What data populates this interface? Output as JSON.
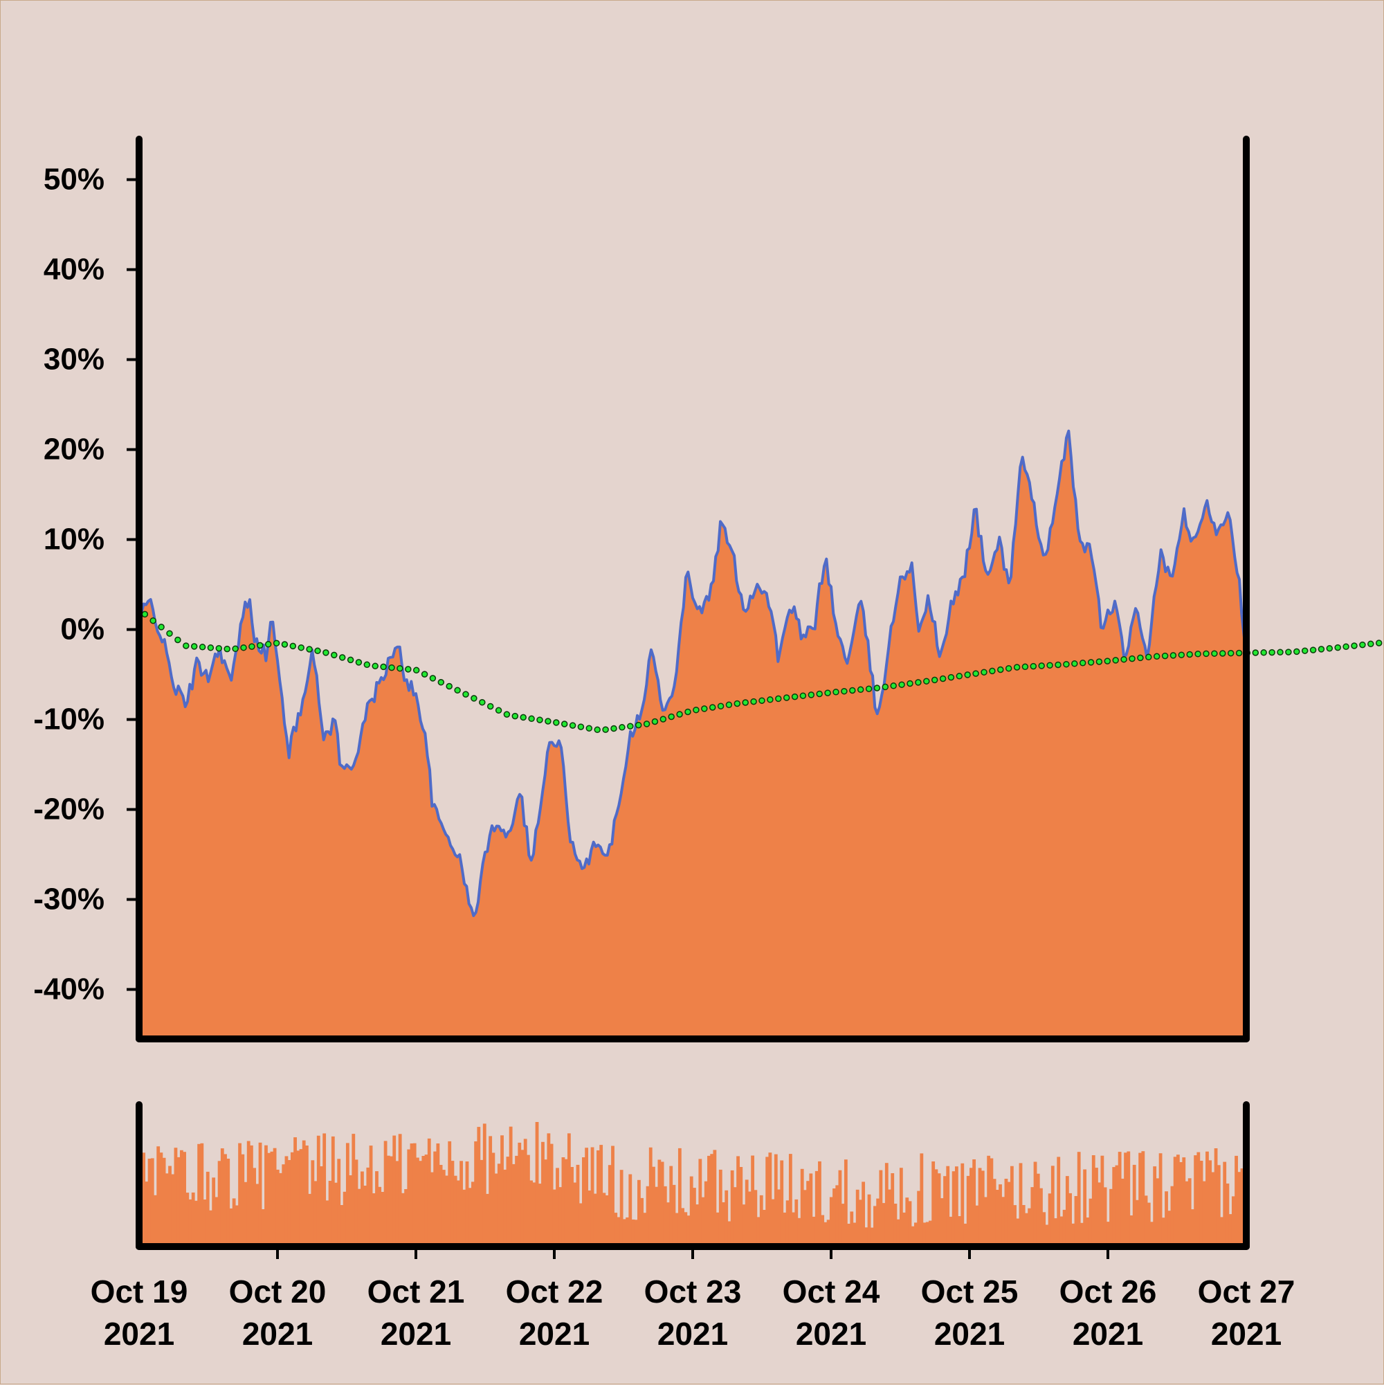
{
  "colors": {
    "background": "#e4d4ce",
    "area_fill": "#ee8148",
    "price_line": "#4f6bc8",
    "ma_marker_fill": "#22e832",
    "ma_marker_stroke": "#0a3a0a",
    "volume_fill": "#ee8148",
    "axis": "#000000"
  },
  "chart_data": [
    {
      "type": "area",
      "name": "price-panel",
      "y_format": "percent",
      "ylim": [
        -0.455,
        0.545
      ],
      "y_ticks": [
        0.5,
        0.4,
        0.3,
        0.2,
        0.1,
        0.0,
        -0.1,
        -0.2,
        -0.3,
        -0.4
      ],
      "y_tick_labels": [
        "50%",
        "40%",
        "30%",
        "20%",
        "10%",
        "0%",
        "-10%",
        "-20%",
        "-30%",
        "-40%"
      ],
      "xlim": [
        "2021-10-19",
        "2021-10-27"
      ],
      "grid": false,
      "series": [
        {
          "role": "price",
          "style": "filled area with line",
          "anchors": [
            [
              "2021-10-19T00:00",
              0.015
            ],
            [
              "2021-10-19T02:00",
              0.03
            ],
            [
              "2021-10-19T04:00",
              -0.01
            ],
            [
              "2021-10-19T06:00",
              -0.06
            ],
            [
              "2021-10-19T08:00",
              -0.085
            ],
            [
              "2021-10-19T10:00",
              -0.04
            ],
            [
              "2021-10-19T12:00",
              -0.05
            ],
            [
              "2021-10-19T14:00",
              -0.02
            ],
            [
              "2021-10-19T16:00",
              -0.06
            ],
            [
              "2021-10-19T18:00",
              0.015
            ],
            [
              "2021-10-19T19:00",
              0.035
            ],
            [
              "2021-10-19T20:00",
              -0.005
            ],
            [
              "2021-10-19T22:00",
              -0.03
            ],
            [
              "2021-10-19T23:00",
              0.015
            ],
            [
              "2021-10-20T00:00",
              -0.04
            ],
            [
              "2021-10-20T02:00",
              -0.135
            ],
            [
              "2021-10-20T04:00",
              -0.09
            ],
            [
              "2021-10-20T06:00",
              -0.02
            ],
            [
              "2021-10-20T08:00",
              -0.12
            ],
            [
              "2021-10-20T10:00",
              -0.1
            ],
            [
              "2021-10-20T11:00",
              -0.155
            ],
            [
              "2021-10-20T13:00",
              -0.155
            ],
            [
              "2021-10-20T15:00",
              -0.1
            ],
            [
              "2021-10-20T17:00",
              -0.07
            ],
            [
              "2021-10-20T19:00",
              -0.04
            ],
            [
              "2021-10-20T21:00",
              -0.02
            ],
            [
              "2021-10-20T22:00",
              -0.05
            ],
            [
              "2021-10-21T00:00",
              -0.075
            ],
            [
              "2021-10-21T01:30",
              -0.11
            ],
            [
              "2021-10-21T03:00",
              -0.2
            ],
            [
              "2021-10-21T05:00",
              -0.225
            ],
            [
              "2021-10-21T07:00",
              -0.245
            ],
            [
              "2021-10-21T08:30",
              -0.28
            ],
            [
              "2021-10-21T10:00",
              -0.325
            ],
            [
              "2021-10-21T12:00",
              -0.25
            ],
            [
              "2021-10-21T14:00",
              -0.21
            ],
            [
              "2021-10-21T16:00",
              -0.23
            ],
            [
              "2021-10-21T18:00",
              -0.175
            ],
            [
              "2021-10-21T20:00",
              -0.26
            ],
            [
              "2021-10-21T22:00",
              -0.18
            ],
            [
              "2021-10-21T23:00",
              -0.13
            ],
            [
              "2021-10-22T01:00",
              -0.125
            ],
            [
              "2021-10-22T03:00",
              -0.24
            ],
            [
              "2021-10-22T05:00",
              -0.275
            ],
            [
              "2021-10-22T07:00",
              -0.23
            ],
            [
              "2021-10-22T09:00",
              -0.26
            ],
            [
              "2021-10-22T11:00",
              -0.2
            ],
            [
              "2021-10-22T13:00",
              -0.12
            ],
            [
              "2021-10-22T15:00",
              -0.09
            ],
            [
              "2021-10-22T17:00",
              -0.02
            ],
            [
              "2021-10-22T19:00",
              -0.1
            ],
            [
              "2021-10-22T21:00",
              -0.05
            ],
            [
              "2021-10-22T23:00",
              0.065
            ],
            [
              "2021-10-23T01:00",
              0.02
            ],
            [
              "2021-10-23T03:00",
              0.035
            ],
            [
              "2021-10-23T05:00",
              0.12
            ],
            [
              "2021-10-23T07:00",
              0.08
            ],
            [
              "2021-10-23T09:00",
              0.02
            ],
            [
              "2021-10-23T11:00",
              0.05
            ],
            [
              "2021-10-23T13:00",
              0.04
            ],
            [
              "2021-10-23T15:00",
              -0.035
            ],
            [
              "2021-10-23T17:00",
              0.03
            ],
            [
              "2021-10-23T19:00",
              -0.01
            ],
            [
              "2021-10-23T21:00",
              0.0
            ],
            [
              "2021-10-23T23:00",
              0.085
            ],
            [
              "2021-10-24T01:00",
              -0.005
            ],
            [
              "2021-10-24T03:00",
              -0.035
            ],
            [
              "2021-10-24T05:00",
              0.03
            ],
            [
              "2021-10-24T06:00",
              0.0
            ],
            [
              "2021-10-24T08:00",
              -0.1
            ],
            [
              "2021-10-24T10:00",
              -0.02
            ],
            [
              "2021-10-24T12:00",
              0.06
            ],
            [
              "2021-10-24T14:00",
              0.07
            ],
            [
              "2021-10-24T15:00",
              0.0
            ],
            [
              "2021-10-24T17:00",
              0.035
            ],
            [
              "2021-10-24T19:00",
              -0.035
            ],
            [
              "2021-10-24T21:00",
              0.03
            ],
            [
              "2021-10-24T23:00",
              0.06
            ],
            [
              "2021-10-25T01:00",
              0.135
            ],
            [
              "2021-10-25T03:00",
              0.055
            ],
            [
              "2021-10-25T05:00",
              0.1
            ],
            [
              "2021-10-25T07:00",
              0.05
            ],
            [
              "2021-10-25T09:00",
              0.19
            ],
            [
              "2021-10-25T11:00",
              0.14
            ],
            [
              "2021-10-25T13:00",
              0.08
            ],
            [
              "2021-10-25T15:00",
              0.135
            ],
            [
              "2021-10-25T17:00",
              0.225
            ],
            [
              "2021-10-25T19:00",
              0.1
            ],
            [
              "2021-10-25T21:00",
              0.09
            ],
            [
              "2021-10-25T23:00",
              0.0
            ],
            [
              "2021-10-26T01:00",
              0.03
            ],
            [
              "2021-10-26T03:00",
              -0.03
            ],
            [
              "2021-10-26T05:00",
              0.02
            ],
            [
              "2021-10-26T07:00",
              -0.03
            ],
            [
              "2021-10-26T09:00",
              0.085
            ],
            [
              "2021-10-26T11:00",
              0.05
            ],
            [
              "2021-10-26T13:00",
              0.13
            ],
            [
              "2021-10-26T15:00",
              0.09
            ],
            [
              "2021-10-26T17:00",
              0.14
            ],
            [
              "2021-10-26T19:00",
              0.11
            ],
            [
              "2021-10-26T21:00",
              0.135
            ],
            [
              "2021-10-26T23:00",
              0.04
            ],
            [
              "2021-10-27T00:00",
              -0.03
            ],
            [
              "2021-10-27T02:00",
              0.01
            ],
            [
              "2021-10-27T04:00",
              -0.01
            ],
            [
              "2021-10-27T06:00",
              0.05
            ],
            [
              "2021-10-27T08:00",
              -0.085
            ],
            [
              "2021-10-27T10:00",
              -0.02
            ],
            [
              "2021-10-27T12:00",
              0.0
            ],
            [
              "2021-10-27T14:00",
              0.085
            ],
            [
              "2021-10-27T16:00",
              0.14
            ],
            [
              "2021-10-27T17:00",
              0.17
            ],
            [
              "2021-10-27T19:00",
              0.155
            ],
            [
              "2021-10-27T21:00",
              0.105
            ],
            [
              "2021-10-27T23:00",
              0.07
            ]
          ]
        },
        {
          "role": "moving-average",
          "style": "dotted markers",
          "anchors": [
            [
              "2021-10-19T01:00",
              0.017
            ],
            [
              "2021-10-19T08:00",
              -0.018
            ],
            [
              "2021-10-19T16:00",
              -0.022
            ],
            [
              "2021-10-20T00:00",
              -0.015
            ],
            [
              "2021-10-20T08:00",
              -0.025
            ],
            [
              "2021-10-20T16:00",
              -0.04
            ],
            [
              "2021-10-21T00:00",
              -0.045
            ],
            [
              "2021-10-21T08:00",
              -0.07
            ],
            [
              "2021-10-21T16:00",
              -0.095
            ],
            [
              "2021-10-22T00:00",
              -0.103
            ],
            [
              "2021-10-22T08:00",
              -0.112
            ],
            [
              "2021-10-22T16:00",
              -0.105
            ],
            [
              "2021-10-23T00:00",
              -0.09
            ],
            [
              "2021-10-23T08:00",
              -0.082
            ],
            [
              "2021-10-23T16:00",
              -0.076
            ],
            [
              "2021-10-24T00:00",
              -0.07
            ],
            [
              "2021-10-24T08:00",
              -0.065
            ],
            [
              "2021-10-24T16:00",
              -0.058
            ],
            [
              "2021-10-25T00:00",
              -0.05
            ],
            [
              "2021-10-25T08:00",
              -0.042
            ],
            [
              "2021-10-25T16:00",
              -0.039
            ],
            [
              "2021-10-26T00:00",
              -0.035
            ],
            [
              "2021-10-26T08:00",
              -0.03
            ],
            [
              "2021-10-26T16:00",
              -0.027
            ],
            [
              "2021-10-27T00:00",
              -0.026
            ],
            [
              "2021-10-27T08:00",
              -0.025
            ],
            [
              "2021-10-27T16:00",
              -0.02
            ],
            [
              "2021-10-27T23:00",
              -0.015
            ]
          ]
        }
      ]
    },
    {
      "type": "bar",
      "name": "volume-panel",
      "y_ticks": [],
      "note_levels": "relative heights, no axis labels",
      "x_ticks": [
        "2021-10-19",
        "2021-10-20",
        "2021-10-21",
        "2021-10-22",
        "2021-10-23",
        "2021-10-24",
        "2021-10-25",
        "2021-10-26",
        "2021-10-27"
      ],
      "x_tick_labels": [
        [
          "Oct 19",
          "2021"
        ],
        [
          "Oct 20",
          "2021"
        ],
        [
          "Oct 21",
          "2021"
        ],
        [
          "Oct 22",
          "2021"
        ],
        [
          "Oct 23",
          "2021"
        ],
        [
          "Oct 24",
          "2021"
        ],
        [
          "Oct 25",
          "2021"
        ],
        [
          "Oct 26",
          "2021"
        ],
        [
          "Oct 27",
          "2021"
        ]
      ],
      "level_profile": [
        [
          "2021-10-19",
          0.55
        ],
        [
          "2021-10-20",
          0.6
        ],
        [
          "2021-10-20T12:00",
          0.62
        ],
        [
          "2021-10-21",
          0.68
        ],
        [
          "2021-10-21T12:00",
          0.72
        ],
        [
          "2021-10-22",
          0.72
        ],
        [
          "2021-10-22T12:00",
          0.5
        ],
        [
          "2021-10-23",
          0.5
        ],
        [
          "2021-10-24",
          0.45
        ],
        [
          "2021-10-25",
          0.45
        ],
        [
          "2021-10-26",
          0.48
        ],
        [
          "2021-10-27",
          0.5
        ]
      ]
    }
  ]
}
